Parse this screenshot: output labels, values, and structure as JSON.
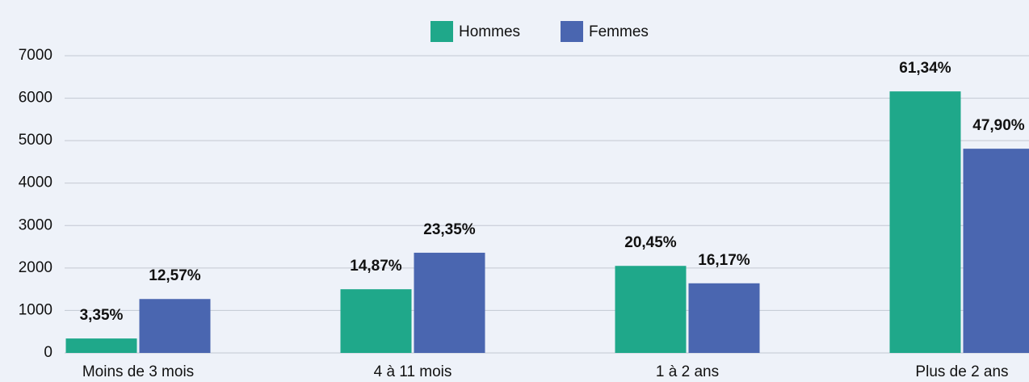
{
  "chart_data": {
    "type": "bar",
    "categories": [
      "Moins de 3 mois",
      "4 à 11 mois",
      "1 à 2 ans",
      "Plus de 2 ans"
    ],
    "series": [
      {
        "name": "Hommes",
        "color": "#1fa88a",
        "values": [
          340,
          1500,
          2050,
          6160
        ],
        "labels": [
          "3,35%",
          "14,87%",
          "20,45%",
          "61,34%"
        ]
      },
      {
        "name": "Femmes",
        "color": "#4a66b0",
        "values": [
          1270,
          2360,
          1640,
          4810
        ],
        "labels": [
          "12,57%",
          "23,35%",
          "16,17%",
          "47,90%"
        ]
      }
    ],
    "ylim": [
      0,
      7000
    ],
    "yticks": [
      0,
      1000,
      2000,
      3000,
      4000,
      5000,
      6000,
      7000
    ],
    "grid": true,
    "legend": "top"
  }
}
